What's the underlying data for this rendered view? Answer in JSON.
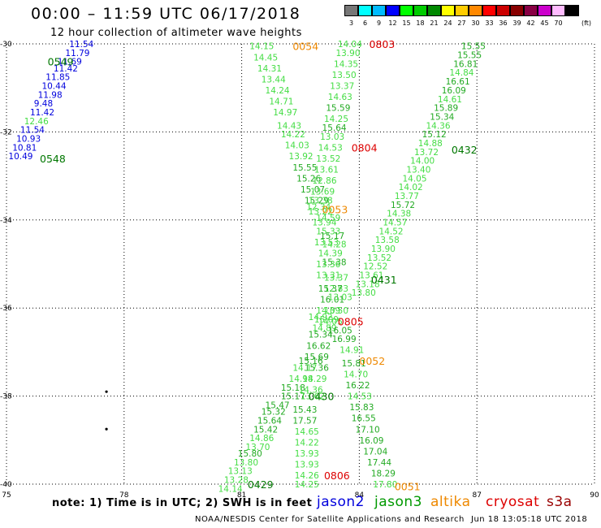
{
  "header": {
    "title": "00:00 – 11:59 UTC 06/17/2018",
    "subtitle": "12 hour collection of altimeter wave heights"
  },
  "colorbar": {
    "unit": "(ft)",
    "levels": [
      {
        "label": "3",
        "color": "#777777"
      },
      {
        "label": "6",
        "color": "#00ffff"
      },
      {
        "label": "9",
        "color": "#00bbff"
      },
      {
        "label": "12",
        "color": "#0000ff"
      },
      {
        "label": "15",
        "color": "#00ff00"
      },
      {
        "label": "18",
        "color": "#00cc00"
      },
      {
        "label": "21",
        "color": "#008800"
      },
      {
        "label": "24",
        "color": "#ffff00"
      },
      {
        "label": "27",
        "color": "#ffcc00"
      },
      {
        "label": "30",
        "color": "#ff8800"
      },
      {
        "label": "33",
        "color": "#ff0000"
      },
      {
        "label": "36",
        "color": "#cc0000"
      },
      {
        "label": "39",
        "color": "#880000"
      },
      {
        "label": "42",
        "color": "#880044"
      },
      {
        "label": "45",
        "color": "#cc00cc"
      },
      {
        "label": "70",
        "color": "#ffbbff"
      },
      {
        "label": "",
        "color": "#000000"
      }
    ]
  },
  "chart_data": {
    "type": "scatter",
    "xlim": [
      75,
      90
    ],
    "ylim": [
      -40,
      -30
    ],
    "xticks": [
      "75",
      "78",
      "81",
      "84",
      "87",
      "90"
    ],
    "yticks": [
      "-30",
      "-32",
      "-34",
      "-36",
      "-38",
      "-40"
    ],
    "colors": {
      "blue": "#0000dd",
      "light": "#44dd44",
      "green": "#22aa22",
      "dark": "#007700",
      "red": "#dd0000",
      "orange": "#ee8800"
    },
    "points": [
      {
        "x": 76.6,
        "y": -30.0,
        "v": "11.54",
        "c": "blue"
      },
      {
        "x": 76.5,
        "y": -30.2,
        "v": "11.79",
        "c": "blue"
      },
      {
        "x": 76.3,
        "y": -30.4,
        "v": "11.69",
        "c": "blue"
      },
      {
        "x": 76.2,
        "y": -30.55,
        "v": "11.42",
        "c": "blue"
      },
      {
        "x": 76.0,
        "y": -30.75,
        "v": "11.85",
        "c": "blue"
      },
      {
        "x": 75.9,
        "y": -30.95,
        "v": "10.44",
        "c": "blue"
      },
      {
        "x": 75.8,
        "y": -31.15,
        "v": "11.98",
        "c": "blue"
      },
      {
        "x": 75.7,
        "y": -31.35,
        "v": "9.48",
        "c": "blue"
      },
      {
        "x": 75.6,
        "y": -31.55,
        "v": "11.42",
        "c": "blue"
      },
      {
        "x": 75.45,
        "y": -31.75,
        "v": "12.46",
        "c": "light"
      },
      {
        "x": 75.35,
        "y": -31.95,
        "v": "11.54",
        "c": "blue"
      },
      {
        "x": 75.25,
        "y": -32.15,
        "v": "10.93",
        "c": "blue"
      },
      {
        "x": 75.15,
        "y": -32.35,
        "v": "10.81",
        "c": "blue"
      },
      {
        "x": 75.05,
        "y": -32.55,
        "v": "10.49",
        "c": "blue"
      },
      {
        "x": 81.2,
        "y": -30.05,
        "v": "14.15",
        "c": "light"
      },
      {
        "x": 81.3,
        "y": -30.3,
        "v": "14.45",
        "c": "light"
      },
      {
        "x": 81.4,
        "y": -30.55,
        "v": "14.31",
        "c": "light"
      },
      {
        "x": 81.5,
        "y": -30.8,
        "v": "13.44",
        "c": "light"
      },
      {
        "x": 81.6,
        "y": -31.05,
        "v": "14.24",
        "c": "light"
      },
      {
        "x": 81.7,
        "y": -31.3,
        "v": "14.71",
        "c": "light"
      },
      {
        "x": 81.8,
        "y": -31.55,
        "v": "14.97",
        "c": "light"
      },
      {
        "x": 81.9,
        "y": -31.85,
        "v": "14.43",
        "c": "light"
      },
      {
        "x": 82.0,
        "y": -32.05,
        "v": "14.22",
        "c": "light"
      },
      {
        "x": 82.1,
        "y": -32.3,
        "v": "14.03",
        "c": "light"
      },
      {
        "x": 82.2,
        "y": -32.55,
        "v": "13.92",
        "c": "light"
      },
      {
        "x": 82.3,
        "y": -32.8,
        "v": "15.55",
        "c": "green"
      },
      {
        "x": 82.4,
        "y": -33.05,
        "v": "15.26",
        "c": "green"
      },
      {
        "x": 82.5,
        "y": -33.3,
        "v": "15.07",
        "c": "green"
      },
      {
        "x": 82.6,
        "y": -33.55,
        "v": "15.29",
        "c": "green"
      },
      {
        "x": 82.7,
        "y": -33.8,
        "v": "13.22",
        "c": "light"
      },
      {
        "x": 82.8,
        "y": -34.05,
        "v": "13.94",
        "c": "light"
      },
      {
        "x": 82.9,
        "y": -34.25,
        "v": "15.33",
        "c": "light"
      },
      {
        "x": 83.0,
        "y": -34.35,
        "v": "15.17",
        "c": "green"
      },
      {
        "x": 82.85,
        "y": -34.5,
        "v": "13.53",
        "c": "light"
      },
      {
        "x": 83.05,
        "y": -34.55,
        "v": "14.28",
        "c": "light"
      },
      {
        "x": 82.95,
        "y": -34.75,
        "v": "14.39",
        "c": "light"
      },
      {
        "x": 83.05,
        "y": -34.95,
        "v": "15.38",
        "c": "green"
      },
      {
        "x": 82.9,
        "y": -35.0,
        "v": "13.36",
        "c": "light"
      },
      {
        "x": 82.9,
        "y": -35.25,
        "v": "13.31",
        "c": "light"
      },
      {
        "x": 83.1,
        "y": -35.3,
        "v": "13.37",
        "c": "light"
      },
      {
        "x": 83.1,
        "y": -35.55,
        "v": "12.83",
        "c": "light"
      },
      {
        "x": 82.95,
        "y": -35.55,
        "v": "15.37",
        "c": "green"
      },
      {
        "x": 83.0,
        "y": -35.8,
        "v": "16.01",
        "c": "green"
      },
      {
        "x": 83.2,
        "y": -35.75,
        "v": "13.03",
        "c": "light"
      },
      {
        "x": 82.9,
        "y": -36.05,
        "v": "14.09",
        "c": "light"
      },
      {
        "x": 83.1,
        "y": -36.05,
        "v": "13.50",
        "c": "light"
      },
      {
        "x": 82.7,
        "y": -36.2,
        "v": "14.92",
        "c": "light"
      },
      {
        "x": 82.85,
        "y": -36.25,
        "v": "15.09",
        "c": "light"
      },
      {
        "x": 82.95,
        "y": -36.3,
        "v": "14.05",
        "c": "light"
      },
      {
        "x": 82.8,
        "y": -36.45,
        "v": "14.89",
        "c": "light"
      },
      {
        "x": 83.2,
        "y": -36.5,
        "v": "16.05",
        "c": "green"
      },
      {
        "x": 82.7,
        "y": -36.6,
        "v": "15.34",
        "c": "green"
      },
      {
        "x": 83.3,
        "y": -36.7,
        "v": "16.99",
        "c": "green"
      },
      {
        "x": 82.65,
        "y": -36.85,
        "v": "16.62",
        "c": "green"
      },
      {
        "x": 83.5,
        "y": -36.95,
        "v": "14.91",
        "c": "light"
      },
      {
        "x": 82.6,
        "y": -37.1,
        "v": "15.69",
        "c": "green"
      },
      {
        "x": 82.45,
        "y": -37.2,
        "v": "15.16",
        "c": "green"
      },
      {
        "x": 83.55,
        "y": -37.25,
        "v": "15.81",
        "c": "green"
      },
      {
        "x": 82.6,
        "y": -37.35,
        "v": "15.36",
        "c": "green"
      },
      {
        "x": 82.3,
        "y": -37.35,
        "v": "14.17",
        "c": "light"
      },
      {
        "x": 83.6,
        "y": -37.5,
        "v": "14.70",
        "c": "light"
      },
      {
        "x": 82.2,
        "y": -37.6,
        "v": "14.98",
        "c": "light"
      },
      {
        "x": 82.55,
        "y": -37.6,
        "v": "14.29",
        "c": "light"
      },
      {
        "x": 83.65,
        "y": -37.75,
        "v": "16.22",
        "c": "green"
      },
      {
        "x": 82.0,
        "y": -37.8,
        "v": "15.18",
        "c": "green"
      },
      {
        "x": 82.45,
        "y": -37.85,
        "v": "14.36",
        "c": "light"
      },
      {
        "x": 83.7,
        "y": -38.0,
        "v": "14.53",
        "c": "light"
      },
      {
        "x": 82.0,
        "y": -38.0,
        "v": "15.17",
        "c": "green"
      },
      {
        "x": 82.5,
        "y": -38.0,
        "v": "13.62",
        "c": "light"
      },
      {
        "x": 81.6,
        "y": -38.2,
        "v": "15.47",
        "c": "green"
      },
      {
        "x": 83.75,
        "y": -38.25,
        "v": "15.83",
        "c": "green"
      },
      {
        "x": 82.3,
        "y": -38.3,
        "v": "15.43",
        "c": "green"
      },
      {
        "x": 81.5,
        "y": -38.35,
        "v": "15.32",
        "c": "green"
      },
      {
        "x": 83.8,
        "y": -38.5,
        "v": "16.55",
        "c": "green"
      },
      {
        "x": 82.3,
        "y": -38.55,
        "v": "17.57",
        "c": "green"
      },
      {
        "x": 81.4,
        "y": -38.55,
        "v": "15.64",
        "c": "green"
      },
      {
        "x": 83.9,
        "y": -38.75,
        "v": "17.10",
        "c": "green"
      },
      {
        "x": 81.3,
        "y": -38.75,
        "v": "15.42",
        "c": "green"
      },
      {
        "x": 82.35,
        "y": -38.8,
        "v": "14.65",
        "c": "light"
      },
      {
        "x": 81.2,
        "y": -38.95,
        "v": "14.86",
        "c": "light"
      },
      {
        "x": 84.0,
        "y": -39.0,
        "v": "16.09",
        "c": "green"
      },
      {
        "x": 82.35,
        "y": -39.05,
        "v": "14.22",
        "c": "light"
      },
      {
        "x": 81.1,
        "y": -39.15,
        "v": "13.70",
        "c": "light"
      },
      {
        "x": 84.1,
        "y": -39.25,
        "v": "17.04",
        "c": "green"
      },
      {
        "x": 82.35,
        "y": -39.3,
        "v": "13.93",
        "c": "light"
      },
      {
        "x": 80.9,
        "y": -39.3,
        "v": "15.80",
        "c": "green"
      },
      {
        "x": 84.2,
        "y": -39.5,
        "v": "17.44",
        "c": "green"
      },
      {
        "x": 82.35,
        "y": -39.55,
        "v": "13.93",
        "c": "light"
      },
      {
        "x": 80.8,
        "y": -39.5,
        "v": "13.80",
        "c": "light"
      },
      {
        "x": 80.65,
        "y": -39.7,
        "v": "13.13",
        "c": "light"
      },
      {
        "x": 84.3,
        "y": -39.75,
        "v": "18.29",
        "c": "green"
      },
      {
        "x": 82.35,
        "y": -39.8,
        "v": "14.26",
        "c": "light"
      },
      {
        "x": 80.55,
        "y": -39.9,
        "v": "13.28",
        "c": "light"
      },
      {
        "x": 82.35,
        "y": -40.0,
        "v": "14.25",
        "c": "light"
      },
      {
        "x": 80.4,
        "y": -40.1,
        "v": "14.14",
        "c": "light"
      },
      {
        "x": 84.35,
        "y": -40.0,
        "v": "17.80",
        "c": "light"
      },
      {
        "x": 83.45,
        "y": -30.0,
        "v": "14.04",
        "c": "light"
      },
      {
        "x": 83.4,
        "y": -30.2,
        "v": "13.90",
        "c": "light"
      },
      {
        "x": 83.35,
        "y": -30.45,
        "v": "14.35",
        "c": "light"
      },
      {
        "x": 83.3,
        "y": -30.7,
        "v": "13.50",
        "c": "light"
      },
      {
        "x": 83.25,
        "y": -30.95,
        "v": "13.37",
        "c": "light"
      },
      {
        "x": 83.2,
        "y": -31.2,
        "v": "14.63",
        "c": "light"
      },
      {
        "x": 83.15,
        "y": -31.45,
        "v": "15.59",
        "c": "green"
      },
      {
        "x": 83.1,
        "y": -31.7,
        "v": "14.25",
        "c": "light"
      },
      {
        "x": 83.05,
        "y": -31.9,
        "v": "15.64",
        "c": "green"
      },
      {
        "x": 83.0,
        "y": -32.1,
        "v": "13.03",
        "c": "light"
      },
      {
        "x": 82.95,
        "y": -32.35,
        "v": "14.53",
        "c": "light"
      },
      {
        "x": 82.9,
        "y": -32.6,
        "v": "13.52",
        "c": "light"
      },
      {
        "x": 82.85,
        "y": -32.85,
        "v": "13.61",
        "c": "light"
      },
      {
        "x": 82.8,
        "y": -33.1,
        "v": "12.86",
        "c": "light"
      },
      {
        "x": 82.75,
        "y": -33.35,
        "v": "13.69",
        "c": "light"
      },
      {
        "x": 82.7,
        "y": -33.55,
        "v": "13.38",
        "c": "light"
      },
      {
        "x": 82.65,
        "y": -33.7,
        "v": "12.34",
        "c": "light"
      },
      {
        "x": 82.9,
        "y": -33.95,
        "v": "14.59",
        "c": "light"
      },
      {
        "x": 86.6,
        "y": -30.05,
        "v": "15.55",
        "c": "green"
      },
      {
        "x": 86.5,
        "y": -30.25,
        "v": "15.55",
        "c": "green"
      },
      {
        "x": 86.4,
        "y": -30.45,
        "v": "16.81",
        "c": "green"
      },
      {
        "x": 86.3,
        "y": -30.65,
        "v": "14.84",
        "c": "light"
      },
      {
        "x": 86.2,
        "y": -30.85,
        "v": "16.61",
        "c": "green"
      },
      {
        "x": 86.1,
        "y": -31.05,
        "v": "16.09",
        "c": "green"
      },
      {
        "x": 86.0,
        "y": -31.25,
        "v": "14.61",
        "c": "light"
      },
      {
        "x": 85.9,
        "y": -31.45,
        "v": "15.89",
        "c": "green"
      },
      {
        "x": 85.8,
        "y": -31.65,
        "v": "15.34",
        "c": "green"
      },
      {
        "x": 85.7,
        "y": -31.85,
        "v": "14.36",
        "c": "light"
      },
      {
        "x": 85.6,
        "y": -32.05,
        "v": "15.12",
        "c": "green"
      },
      {
        "x": 85.5,
        "y": -32.25,
        "v": "14.88",
        "c": "light"
      },
      {
        "x": 85.4,
        "y": -32.45,
        "v": "13.72",
        "c": "light"
      },
      {
        "x": 85.3,
        "y": -32.65,
        "v": "14.00",
        "c": "light"
      },
      {
        "x": 85.2,
        "y": -32.85,
        "v": "13.40",
        "c": "light"
      },
      {
        "x": 85.1,
        "y": -33.05,
        "v": "14.05",
        "c": "light"
      },
      {
        "x": 85.0,
        "y": -33.25,
        "v": "14.02",
        "c": "light"
      },
      {
        "x": 84.9,
        "y": -33.45,
        "v": "13.77",
        "c": "light"
      },
      {
        "x": 84.8,
        "y": -33.65,
        "v": "15.72",
        "c": "green"
      },
      {
        "x": 84.7,
        "y": -33.85,
        "v": "14.38",
        "c": "light"
      },
      {
        "x": 84.6,
        "y": -34.05,
        "v": "14.57",
        "c": "light"
      },
      {
        "x": 84.5,
        "y": -34.25,
        "v": "14.52",
        "c": "light"
      },
      {
        "x": 84.4,
        "y": -34.45,
        "v": "13.58",
        "c": "light"
      },
      {
        "x": 84.3,
        "y": -34.65,
        "v": "13.90",
        "c": "light"
      },
      {
        "x": 84.2,
        "y": -34.85,
        "v": "13.52",
        "c": "light"
      },
      {
        "x": 84.1,
        "y": -35.05,
        "v": "12.52",
        "c": "light"
      },
      {
        "x": 84.0,
        "y": -35.25,
        "v": "13.61",
        "c": "light"
      },
      {
        "x": 83.9,
        "y": -35.45,
        "v": "13.18",
        "c": "light"
      },
      {
        "x": 83.8,
        "y": -35.65,
        "v": "13.80",
        "c": "light"
      }
    ],
    "passes": [
      {
        "x": 76.05,
        "y": -30.4,
        "label": "0549",
        "c": "dark"
      },
      {
        "x": 75.85,
        "y": -32.6,
        "label": "0548",
        "c": "dark"
      },
      {
        "x": 82.3,
        "y": -30.05,
        "label": "0054",
        "c": "orange"
      },
      {
        "x": 84.25,
        "y": -30.0,
        "label": "0803",
        "c": "red"
      },
      {
        "x": 83.8,
        "y": -32.35,
        "label": "0804",
        "c": "red"
      },
      {
        "x": 86.35,
        "y": -32.4,
        "label": "0432",
        "c": "dark"
      },
      {
        "x": 83.05,
        "y": -33.75,
        "label": "0053",
        "c": "orange"
      },
      {
        "x": 84.3,
        "y": -35.35,
        "label": "0431",
        "c": "dark"
      },
      {
        "x": 83.45,
        "y": -36.3,
        "label": "0805",
        "c": "red"
      },
      {
        "x": 84.0,
        "y": -37.2,
        "label": "0052",
        "c": "orange"
      },
      {
        "x": 82.7,
        "y": -38.0,
        "label": "0430",
        "c": "dark"
      },
      {
        "x": 83.1,
        "y": -39.8,
        "label": "0806",
        "c": "red"
      },
      {
        "x": 81.15,
        "y": -40.0,
        "label": "0429",
        "c": "dark"
      },
      {
        "x": 84.9,
        "y": -40.05,
        "label": "0051",
        "c": "orange"
      }
    ],
    "markers": [
      {
        "x": 77.55,
        "y": -37.9
      },
      {
        "x": 77.55,
        "y": -38.75
      }
    ]
  },
  "note": "note: 1) Time is in UTC; 2) SWH is in feet",
  "legend": [
    {
      "label": "jason2",
      "color": "#0000dd"
    },
    {
      "label": "jason3",
      "color": "#009900"
    },
    {
      "label": "altika",
      "color": "#ee8800"
    },
    {
      "label": "cryosat",
      "color": "#dd0000"
    },
    {
      "label": "s3a",
      "color": "#990000"
    }
  ],
  "footer": {
    "credit": "NOAA/NESDIS Center for Satellite Applications and Research",
    "timestamp": "Jun 18 13:05:18 UTC 2018"
  }
}
